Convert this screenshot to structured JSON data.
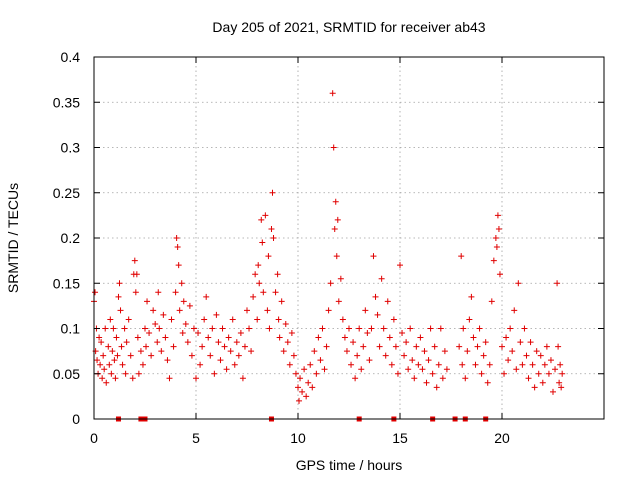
{
  "chart_data": {
    "type": "scatter",
    "title": "Day 205 of 2021, SRMTID for receiver ab43",
    "xlabel": "GPS time / hours",
    "ylabel": "SRMTID / TECUs",
    "xlim": [
      0,
      25
    ],
    "ylim": [
      0,
      0.4
    ],
    "x_ticks": [
      0,
      5,
      10,
      15,
      20
    ],
    "x_tick_labels": [
      "0",
      "5",
      "10",
      "15",
      "20"
    ],
    "y_ticks": [
      0,
      0.05,
      0.1,
      0.15,
      0.2,
      0.25,
      0.3,
      0.35,
      0.4
    ],
    "y_tick_labels": [
      "0",
      "0.05",
      "0.1",
      "0.15",
      "0.2",
      "0.25",
      "0.3",
      "0.35",
      "0.4"
    ],
    "grid": true,
    "marker": "plus",
    "color": "#e00000",
    "series": [
      {
        "name": "SRMTID",
        "points": [
          [
            0.0,
            0.13
          ],
          [
            0.05,
            0.14
          ],
          [
            0.08,
            0.075
          ],
          [
            0.12,
            0.1
          ],
          [
            0.15,
            0.065
          ],
          [
            0.2,
            0.05
          ],
          [
            0.25,
            0.09
          ],
          [
            0.3,
            0.06
          ],
          [
            0.35,
            0.085
          ],
          [
            0.4,
            0.045
          ],
          [
            0.45,
            0.07
          ],
          [
            0.5,
            0.055
          ],
          [
            0.55,
            0.1
          ],
          [
            0.6,
            0.04
          ],
          [
            0.7,
            0.08
          ],
          [
            0.75,
            0.06
          ],
          [
            0.8,
            0.11
          ],
          [
            0.85,
            0.05
          ],
          [
            0.9,
            0.075
          ],
          [
            0.95,
            0.1
          ],
          [
            1.0,
            0.065
          ],
          [
            1.05,
            0.045
          ],
          [
            1.1,
            0.09
          ],
          [
            1.15,
            0.07
          ],
          [
            1.2,
            0.135
          ],
          [
            1.25,
            0.15
          ],
          [
            1.3,
            0.12
          ],
          [
            1.35,
            0.08
          ],
          [
            1.4,
            0.06
          ],
          [
            1.5,
            0.1
          ],
          [
            1.55,
            0.05
          ],
          [
            1.6,
            0.085
          ],
          [
            1.7,
            0.11
          ],
          [
            1.8,
            0.07
          ],
          [
            1.9,
            0.045
          ],
          [
            1.95,
            0.16
          ],
          [
            2.0,
            0.175
          ],
          [
            2.05,
            0.14
          ],
          [
            2.1,
            0.16
          ],
          [
            2.15,
            0.09
          ],
          [
            2.2,
            0.05
          ],
          [
            2.3,
            0.075
          ],
          [
            2.4,
            0.06
          ],
          [
            2.5,
            0.1
          ],
          [
            2.55,
            0.08
          ],
          [
            2.6,
            0.13
          ],
          [
            2.7,
            0.095
          ],
          [
            2.8,
            0.07
          ],
          [
            2.9,
            0.12
          ],
          [
            3.0,
            0.105
          ],
          [
            3.1,
            0.085
          ],
          [
            3.15,
            0.14
          ],
          [
            3.2,
            0.1
          ],
          [
            3.3,
            0.075
          ],
          [
            3.4,
            0.115
          ],
          [
            3.5,
            0.09
          ],
          [
            3.6,
            0.065
          ],
          [
            3.7,
            0.045
          ],
          [
            3.8,
            0.11
          ],
          [
            3.9,
            0.08
          ],
          [
            4.0,
            0.14
          ],
          [
            4.05,
            0.2
          ],
          [
            4.1,
            0.19
          ],
          [
            4.15,
            0.17
          ],
          [
            4.2,
            0.12
          ],
          [
            4.3,
            0.15
          ],
          [
            4.35,
            0.095
          ],
          [
            4.4,
            0.13
          ],
          [
            4.5,
            0.105
          ],
          [
            4.6,
            0.085
          ],
          [
            4.7,
            0.125
          ],
          [
            4.8,
            0.07
          ],
          [
            4.9,
            0.1
          ],
          [
            5.0,
            0.045
          ],
          [
            5.1,
            0.095
          ],
          [
            5.2,
            0.06
          ],
          [
            5.3,
            0.08
          ],
          [
            5.4,
            0.11
          ],
          [
            5.5,
            0.135
          ],
          [
            5.6,
            0.09
          ],
          [
            5.7,
            0.07
          ],
          [
            5.8,
            0.1
          ],
          [
            5.9,
            0.05
          ],
          [
            6.0,
            0.115
          ],
          [
            6.1,
            0.085
          ],
          [
            6.2,
            0.065
          ],
          [
            6.3,
            0.1
          ],
          [
            6.4,
            0.08
          ],
          [
            6.5,
            0.055
          ],
          [
            6.6,
            0.09
          ],
          [
            6.7,
            0.075
          ],
          [
            6.8,
            0.11
          ],
          [
            6.9,
            0.06
          ],
          [
            7.0,
            0.085
          ],
          [
            7.1,
            0.07
          ],
          [
            7.2,
            0.095
          ],
          [
            7.3,
            0.045
          ],
          [
            7.4,
            0.08
          ],
          [
            7.5,
            0.12
          ],
          [
            7.6,
            0.1
          ],
          [
            7.7,
            0.075
          ],
          [
            7.8,
            0.135
          ],
          [
            7.9,
            0.16
          ],
          [
            8.0,
            0.11
          ],
          [
            8.05,
            0.17
          ],
          [
            8.1,
            0.15
          ],
          [
            8.2,
            0.22
          ],
          [
            8.25,
            0.195
          ],
          [
            8.3,
            0.14
          ],
          [
            8.4,
            0.225
          ],
          [
            8.5,
            0.12
          ],
          [
            8.55,
            0.18
          ],
          [
            8.6,
            0.1
          ],
          [
            8.7,
            0.21
          ],
          [
            8.75,
            0.25
          ],
          [
            8.8,
            0.2
          ],
          [
            8.9,
            0.14
          ],
          [
            9.0,
            0.16
          ],
          [
            9.05,
            0.11
          ],
          [
            9.1,
            0.09
          ],
          [
            9.2,
            0.13
          ],
          [
            9.3,
            0.075
          ],
          [
            9.4,
            0.105
          ],
          [
            9.5,
            0.085
          ],
          [
            9.6,
            0.06
          ],
          [
            9.7,
            0.095
          ],
          [
            9.8,
            0.07
          ],
          [
            9.9,
            0.05
          ],
          [
            10.0,
            0.035
          ],
          [
            10.05,
            0.02
          ],
          [
            10.1,
            0.045
          ],
          [
            10.2,
            0.03
          ],
          [
            10.3,
            0.055
          ],
          [
            10.4,
            0.025
          ],
          [
            10.5,
            0.04
          ],
          [
            10.6,
            0.06
          ],
          [
            10.7,
            0.035
          ],
          [
            10.8,
            0.075
          ],
          [
            10.9,
            0.05
          ],
          [
            11.0,
            0.09
          ],
          [
            11.1,
            0.065
          ],
          [
            11.2,
            0.1
          ],
          [
            11.3,
            0.055
          ],
          [
            11.4,
            0.08
          ],
          [
            11.5,
            0.12
          ],
          [
            11.6,
            0.15
          ],
          [
            11.7,
            0.36
          ],
          [
            11.75,
            0.3
          ],
          [
            11.8,
            0.21
          ],
          [
            11.85,
            0.24
          ],
          [
            11.9,
            0.18
          ],
          [
            11.95,
            0.22
          ],
          [
            12.0,
            0.13
          ],
          [
            12.1,
            0.155
          ],
          [
            12.2,
            0.11
          ],
          [
            12.3,
            0.09
          ],
          [
            12.4,
            0.075
          ],
          [
            12.5,
            0.1
          ],
          [
            12.6,
            0.06
          ],
          [
            12.7,
            0.085
          ],
          [
            12.8,
            0.045
          ],
          [
            12.9,
            0.07
          ],
          [
            13.0,
            0.1
          ],
          [
            13.1,
            0.055
          ],
          [
            13.2,
            0.08
          ],
          [
            13.3,
            0.12
          ],
          [
            13.4,
            0.095
          ],
          [
            13.5,
            0.065
          ],
          [
            13.6,
            0.1
          ],
          [
            13.7,
            0.18
          ],
          [
            13.8,
            0.135
          ],
          [
            13.9,
            0.115
          ],
          [
            14.0,
            0.08
          ],
          [
            14.1,
            0.155
          ],
          [
            14.2,
            0.1
          ],
          [
            14.3,
            0.07
          ],
          [
            14.4,
            0.13
          ],
          [
            14.5,
            0.09
          ],
          [
            14.6,
            0.06
          ],
          [
            14.7,
            0.11
          ],
          [
            14.8,
            0.08
          ],
          [
            14.9,
            0.05
          ],
          [
            15.0,
            0.17
          ],
          [
            15.1,
            0.095
          ],
          [
            15.2,
            0.07
          ],
          [
            15.3,
            0.085
          ],
          [
            15.4,
            0.055
          ],
          [
            15.5,
            0.1
          ],
          [
            15.6,
            0.065
          ],
          [
            15.7,
            0.045
          ],
          [
            15.8,
            0.08
          ],
          [
            15.9,
            0.06
          ],
          [
            16.0,
            0.09
          ],
          [
            16.1,
            0.055
          ],
          [
            16.2,
            0.075
          ],
          [
            16.3,
            0.04
          ],
          [
            16.4,
            0.065
          ],
          [
            16.5,
            0.1
          ],
          [
            16.6,
            0.05
          ],
          [
            16.7,
            0.08
          ],
          [
            16.8,
            0.035
          ],
          [
            16.9,
            0.06
          ],
          [
            17.0,
            0.1
          ],
          [
            17.1,
            0.045
          ],
          [
            17.2,
            0.075
          ],
          [
            17.3,
            0.055
          ],
          [
            17.9,
            0.08
          ],
          [
            18.0,
            0.18
          ],
          [
            18.05,
            0.06
          ],
          [
            18.1,
            0.1
          ],
          [
            18.2,
            0.045
          ],
          [
            18.3,
            0.075
          ],
          [
            18.4,
            0.11
          ],
          [
            18.5,
            0.135
          ],
          [
            18.6,
            0.09
          ],
          [
            18.7,
            0.06
          ],
          [
            18.8,
            0.08
          ],
          [
            18.9,
            0.1
          ],
          [
            19.0,
            0.05
          ],
          [
            19.1,
            0.07
          ],
          [
            19.2,
            0.085
          ],
          [
            19.3,
            0.04
          ],
          [
            19.4,
            0.06
          ],
          [
            19.5,
            0.13
          ],
          [
            19.6,
            0.175
          ],
          [
            19.7,
            0.2
          ],
          [
            19.75,
            0.19
          ],
          [
            19.8,
            0.225
          ],
          [
            19.85,
            0.21
          ],
          [
            19.9,
            0.16
          ],
          [
            20.0,
            0.08
          ],
          [
            20.1,
            0.05
          ],
          [
            20.2,
            0.09
          ],
          [
            20.3,
            0.065
          ],
          [
            20.4,
            0.1
          ],
          [
            20.5,
            0.075
          ],
          [
            20.6,
            0.12
          ],
          [
            20.7,
            0.055
          ],
          [
            20.8,
            0.15
          ],
          [
            20.9,
            0.085
          ],
          [
            21.0,
            0.06
          ],
          [
            21.1,
            0.1
          ],
          [
            21.2,
            0.07
          ],
          [
            21.3,
            0.045
          ],
          [
            21.4,
            0.085
          ],
          [
            21.5,
            0.06
          ],
          [
            21.6,
            0.035
          ],
          [
            21.7,
            0.075
          ],
          [
            21.8,
            0.05
          ],
          [
            21.9,
            0.07
          ],
          [
            22.0,
            0.04
          ],
          [
            22.1,
            0.06
          ],
          [
            22.2,
            0.08
          ],
          [
            22.3,
            0.05
          ],
          [
            22.4,
            0.065
          ],
          [
            22.5,
            0.03
          ],
          [
            22.6,
            0.055
          ],
          [
            22.7,
            0.15
          ],
          [
            22.75,
            0.08
          ],
          [
            22.8,
            0.04
          ],
          [
            22.85,
            0.06
          ],
          [
            22.9,
            0.035
          ],
          [
            22.95,
            0.05
          ]
        ]
      }
    ],
    "gap_markers_x": [
      1.2,
      2.3,
      2.5,
      8.7,
      13.0,
      14.7,
      16.6,
      17.7,
      18.2,
      19.2
    ]
  }
}
